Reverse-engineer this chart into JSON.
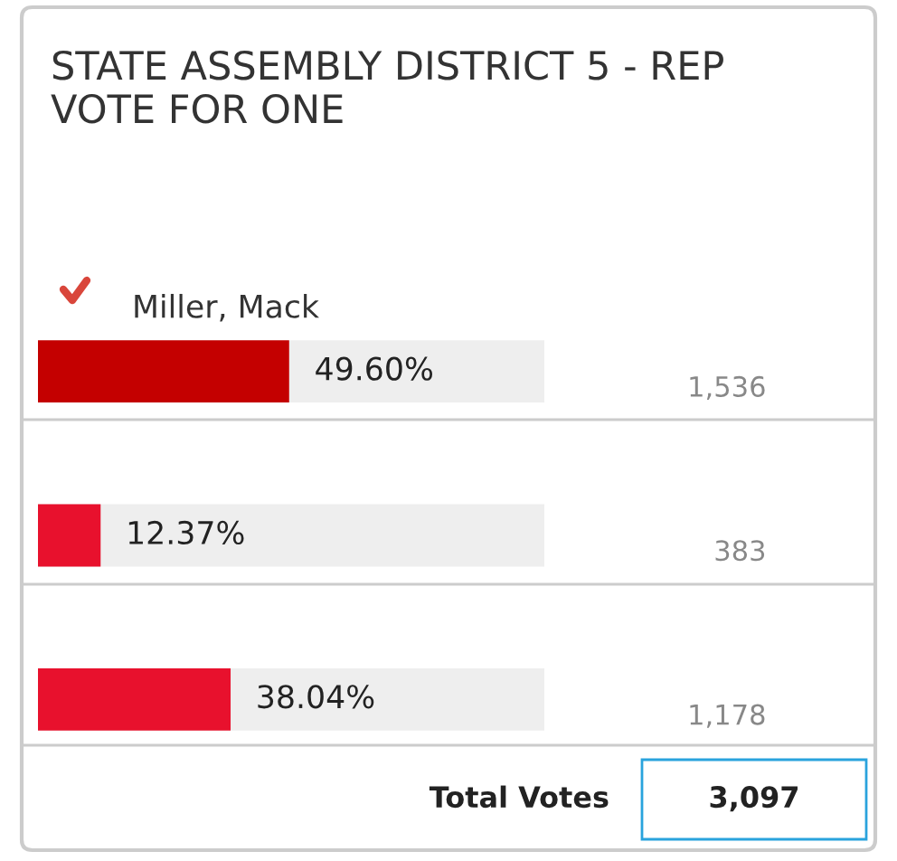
{
  "chart_data": {
    "type": "bar",
    "orientation": "horizontal",
    "title": "STATE ASSEMBLY DISTRICT 5 - REP",
    "subtitle": "VOTE FOR ONE",
    "categories": [
      "Miller, Mack",
      null,
      null
    ],
    "values": [
      49.6,
      12.37,
      38.04
    ],
    "colors": [
      "#c40000",
      "#e8112d",
      "#e8112d"
    ],
    "value_labels": [
      "49.60%",
      "12.37%",
      "38.04%"
    ],
    "xlim": [
      0,
      100
    ],
    "annotations": [
      "1,536",
      "383",
      "1,178",
      "Total Votes",
      "3,097"
    ]
  }
}
